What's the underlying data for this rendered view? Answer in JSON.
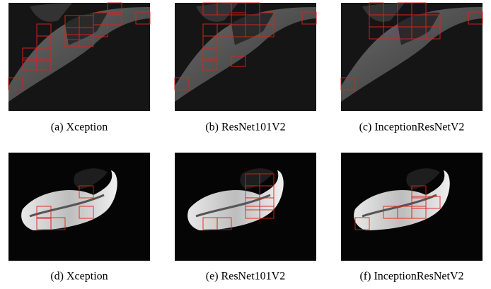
{
  "figure": {
    "panels": [
      {
        "caption": "(a) Xception"
      },
      {
        "caption": "(b) ResNet101V2"
      },
      {
        "caption": "(c) InceptionResNetV2"
      },
      {
        "caption": "(d) Xception"
      },
      {
        "caption": "(e) ResNet101V2"
      },
      {
        "caption": "(f) InceptionResNetV2"
      }
    ]
  }
}
